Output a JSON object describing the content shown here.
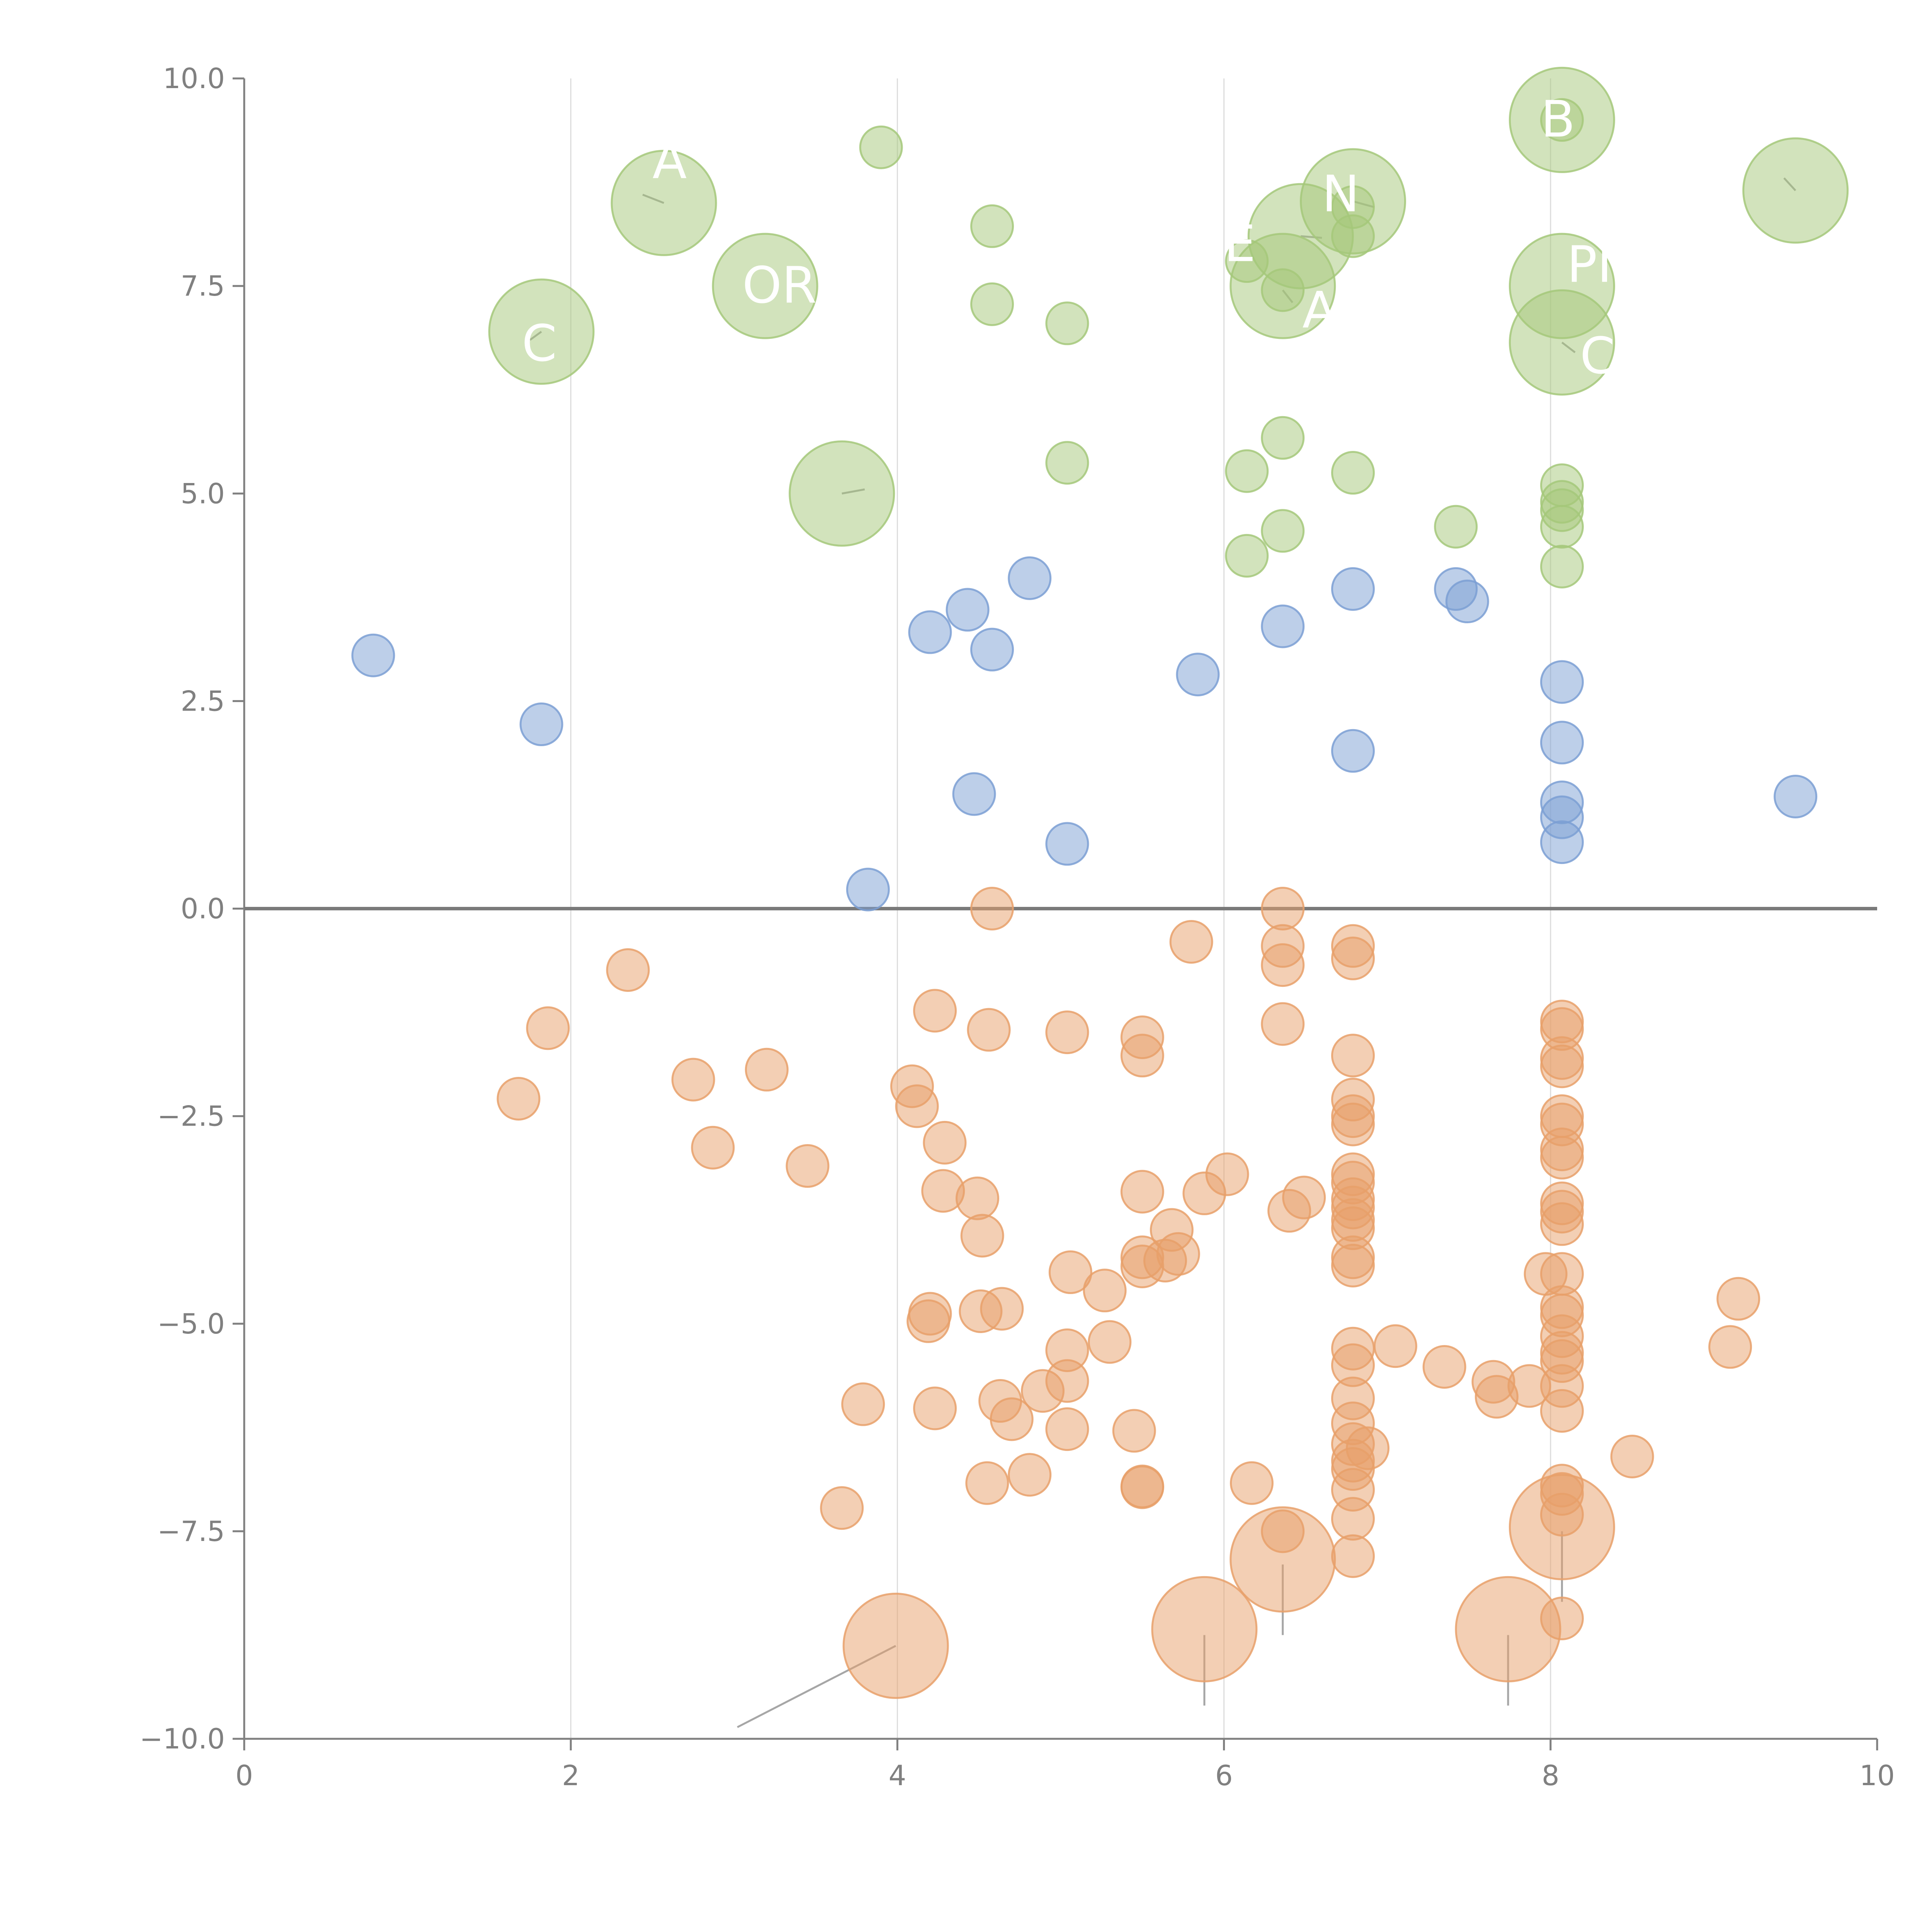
{
  "chart_data": {
    "type": "scatter",
    "title": "",
    "xlabel": "",
    "ylabel": "",
    "xlim": [
      0,
      10
    ],
    "ylim": [
      -10,
      10
    ],
    "xticks": [
      0,
      2,
      4,
      6,
      8,
      10
    ],
    "yticks": [
      -10,
      -7.5,
      -5,
      -2.5,
      0,
      2.5,
      5,
      7.5,
      10
    ],
    "xtick_labels": [
      "0",
      "2",
      "4",
      "6",
      "8",
      "10"
    ],
    "ytick_labels": [
      "−10.0",
      "−7.5",
      "−5.0",
      "−2.5",
      "0.0",
      "2.5",
      "5.0",
      "7.5",
      "10.0"
    ],
    "grid_x": true,
    "grid_y": false,
    "zero_line": true,
    "colors": {
      "green": "#a5c87a",
      "blue": "#7b9fd4",
      "orange": "#e8a06a",
      "axis": "#808080",
      "grid": "#dcdcdc",
      "annotation_line": "#a6a6a6"
    },
    "series": [
      {
        "name": "green",
        "color": "#a5c87a",
        "points": [
          [
            3.9,
            9.17,
            1
          ],
          [
            4.58,
            8.22,
            1
          ],
          [
            4.58,
            7.28,
            1
          ],
          [
            5.04,
            7.05,
            1
          ],
          [
            6.14,
            7.8,
            1
          ],
          [
            6.36,
            7.45,
            1
          ],
          [
            6.79,
            8.1,
            1
          ],
          [
            6.79,
            8.45,
            1
          ],
          [
            8.07,
            9.5,
            1
          ],
          [
            5.04,
            5.37,
            1
          ],
          [
            6.14,
            5.27,
            1
          ],
          [
            6.36,
            5.67,
            1
          ],
          [
            6.79,
            5.25,
            1
          ],
          [
            6.14,
            4.25,
            1
          ],
          [
            6.36,
            4.55,
            1
          ],
          [
            7.42,
            4.6,
            1
          ],
          [
            8.07,
            5.1,
            1
          ],
          [
            8.07,
            4.9,
            1
          ],
          [
            8.07,
            4.8,
            1
          ],
          [
            8.07,
            4.6,
            1
          ],
          [
            8.07,
            4.12,
            1
          ],
          [
            2.57,
            8.5,
            2.5
          ],
          [
            3.19,
            7.5,
            2.5
          ],
          [
            1.82,
            6.95,
            2.5
          ],
          [
            3.66,
            5.0,
            2.5
          ],
          [
            6.36,
            7.5,
            2.5
          ],
          [
            6.47,
            8.1,
            2.5
          ],
          [
            6.79,
            8.52,
            2.5
          ],
          [
            8.07,
            9.5,
            2.5
          ],
          [
            8.07,
            7.5,
            2.5
          ],
          [
            8.07,
            6.82,
            2.5
          ],
          [
            9.5,
            8.65,
            2.5
          ]
        ]
      },
      {
        "name": "blue",
        "color": "#7b9fd4",
        "points": [
          [
            0.79,
            3.05,
            1
          ],
          [
            1.82,
            2.22,
            1
          ],
          [
            3.82,
            0.23,
            1
          ],
          [
            4.2,
            3.33,
            1
          ],
          [
            4.43,
            3.6,
            1
          ],
          [
            4.47,
            1.38,
            1
          ],
          [
            4.58,
            3.12,
            1
          ],
          [
            4.81,
            3.98,
            1
          ],
          [
            5.04,
            0.78,
            1
          ],
          [
            5.84,
            2.82,
            1
          ],
          [
            6.36,
            3.4,
            1
          ],
          [
            6.79,
            3.85,
            1
          ],
          [
            6.79,
            1.9,
            1
          ],
          [
            7.42,
            3.85,
            1
          ],
          [
            7.49,
            3.7,
            1
          ],
          [
            8.07,
            2.73,
            1
          ],
          [
            8.07,
            2.0,
            1
          ],
          [
            8.07,
            1.28,
            1
          ],
          [
            8.07,
            1.1,
            1
          ],
          [
            8.07,
            0.8,
            1
          ],
          [
            9.5,
            1.35,
            1
          ]
        ]
      },
      {
        "name": "orange",
        "color": "#e8a06a",
        "points": [
          [
            2.35,
            -0.74,
            1
          ],
          [
            1.86,
            -1.44,
            1
          ],
          [
            1.68,
            -2.29,
            1
          ],
          [
            2.75,
            -2.06,
            1
          ],
          [
            2.87,
            -2.88,
            1
          ],
          [
            3.2,
            -1.94,
            1
          ],
          [
            3.45,
            -3.1,
            1
          ],
          [
            3.66,
            -7.22,
            1
          ],
          [
            3.79,
            -5.97,
            1
          ],
          [
            4.09,
            -2.14,
            1
          ],
          [
            4.12,
            -2.38,
            1
          ],
          [
            4.23,
            -1.23,
            1
          ],
          [
            4.29,
            -2.82,
            1
          ],
          [
            4.28,
            -3.4,
            1
          ],
          [
            4.2,
            -4.88,
            1
          ],
          [
            4.19,
            -4.97,
            1
          ],
          [
            4.23,
            -6.02,
            1
          ],
          [
            4.49,
            -3.49,
            1
          ],
          [
            4.52,
            -3.94,
            1
          ],
          [
            4.51,
            -4.85,
            1
          ],
          [
            4.55,
            -6.92,
            1
          ],
          [
            4.56,
            -1.46,
            1
          ],
          [
            4.58,
            0.0,
            1
          ],
          [
            4.64,
            -4.82,
            1
          ],
          [
            4.63,
            -5.93,
            1
          ],
          [
            4.7,
            -6.15,
            1
          ],
          [
            4.81,
            -6.82,
            1
          ],
          [
            4.89,
            -5.81,
            1
          ],
          [
            5.04,
            -1.49,
            1
          ],
          [
            5.06,
            -4.38,
            1
          ],
          [
            5.04,
            -5.32,
            1
          ],
          [
            5.04,
            -5.69,
            1
          ],
          [
            5.04,
            -6.27,
            1
          ],
          [
            5.27,
            -4.6,
            1
          ],
          [
            5.3,
            -5.22,
            1
          ],
          [
            5.45,
            -6.29,
            1
          ],
          [
            5.5,
            -1.55,
            1
          ],
          [
            5.5,
            -1.77,
            1
          ],
          [
            5.5,
            -3.41,
            1
          ],
          [
            5.5,
            -4.2,
            1
          ],
          [
            5.5,
            -4.31,
            1
          ],
          [
            5.5,
            -6.96,
            1
          ],
          [
            5.5,
            -6.97,
            1
          ],
          [
            5.64,
            -4.24,
            1
          ],
          [
            5.68,
            -3.87,
            1
          ],
          [
            5.72,
            -4.16,
            1
          ],
          [
            5.8,
            -0.4,
            1
          ],
          [
            5.88,
            -3.43,
            1
          ],
          [
            6.02,
            -3.2,
            1
          ],
          [
            6.17,
            -6.92,
            1
          ],
          [
            6.36,
            0.0,
            1
          ],
          [
            6.36,
            -0.45,
            1
          ],
          [
            6.36,
            -0.68,
            1
          ],
          [
            6.36,
            -1.39,
            1
          ],
          [
            6.4,
            -3.64,
            1
          ],
          [
            6.49,
            -3.48,
            1
          ],
          [
            6.36,
            -7.5,
            1
          ],
          [
            6.79,
            -0.45,
            1
          ],
          [
            6.79,
            -0.6,
            1
          ],
          [
            6.79,
            -1.77,
            1
          ],
          [
            6.79,
            -2.3,
            1
          ],
          [
            6.79,
            -2.5,
            1
          ],
          [
            6.79,
            -2.6,
            1
          ],
          [
            6.79,
            -3.2,
            1
          ],
          [
            6.79,
            -3.3,
            1
          ],
          [
            6.79,
            -3.5,
            1
          ],
          [
            6.79,
            -3.6,
            1
          ],
          [
            6.79,
            -3.75,
            1
          ],
          [
            6.79,
            -3.85,
            1
          ],
          [
            6.79,
            -4.2,
            1
          ],
          [
            6.79,
            -4.3,
            1
          ],
          [
            6.79,
            -5.3,
            1
          ],
          [
            6.79,
            -5.5,
            1
          ],
          [
            6.79,
            -5.9,
            1
          ],
          [
            6.79,
            -6.2,
            1
          ],
          [
            6.79,
            -6.45,
            1
          ],
          [
            6.79,
            -6.65,
            1
          ],
          [
            6.79,
            -6.75,
            1
          ],
          [
            6.79,
            -7.0,
            1
          ],
          [
            6.79,
            -7.35,
            1
          ],
          [
            6.79,
            -7.8,
            1
          ],
          [
            6.88,
            -6.5,
            1
          ],
          [
            7.05,
            -5.27,
            1
          ],
          [
            7.35,
            -5.52,
            1
          ],
          [
            7.65,
            -5.7,
            1
          ],
          [
            7.67,
            -5.88,
            1
          ],
          [
            7.87,
            -5.75,
            1
          ],
          [
            7.97,
            -4.4,
            1
          ],
          [
            8.07,
            -1.36,
            1
          ],
          [
            8.07,
            -1.45,
            1
          ],
          [
            8.07,
            -1.8,
            1
          ],
          [
            8.07,
            -1.9,
            1
          ],
          [
            8.07,
            -2.5,
            1
          ],
          [
            8.07,
            -2.6,
            1
          ],
          [
            8.07,
            -2.9,
            1
          ],
          [
            8.07,
            -3.0,
            1
          ],
          [
            8.07,
            -3.55,
            1
          ],
          [
            8.07,
            -3.65,
            1
          ],
          [
            8.07,
            -3.8,
            1
          ],
          [
            8.07,
            -4.4,
            1
          ],
          [
            8.07,
            -4.8,
            1
          ],
          [
            8.07,
            -4.9,
            1
          ],
          [
            8.07,
            -5.15,
            1
          ],
          [
            8.07,
            -5.35,
            1
          ],
          [
            8.07,
            -5.45,
            1
          ],
          [
            8.07,
            -5.75,
            1
          ],
          [
            8.07,
            -6.05,
            1
          ],
          [
            8.07,
            -6.95,
            1
          ],
          [
            8.07,
            -7.05,
            1
          ],
          [
            8.07,
            -7.3,
            1
          ],
          [
            8.07,
            -8.55,
            1
          ],
          [
            8.5,
            -6.6,
            1
          ],
          [
            9.1,
            -5.28,
            1
          ],
          [
            9.15,
            -4.7,
            1
          ],
          [
            3.99,
            -8.88,
            2.5
          ],
          [
            5.88,
            -8.68,
            2.5
          ],
          [
            6.36,
            -7.84,
            2.5
          ],
          [
            7.74,
            -8.68,
            2.5
          ],
          [
            8.07,
            -7.45,
            2.5
          ]
        ]
      }
    ],
    "annotation_lines": [
      [
        3.99,
        -8.88,
        3.02,
        -9.86
      ],
      [
        5.88,
        -8.75,
        5.88,
        -9.6
      ],
      [
        6.36,
        -7.9,
        6.36,
        -8.75
      ],
      [
        7.74,
        -8.75,
        7.74,
        -9.6
      ],
      [
        8.07,
        -7.5,
        8.07,
        -8.35
      ],
      [
        2.57,
        8.5,
        2.44,
        8.6
      ],
      [
        1.82,
        6.95,
        1.75,
        6.85
      ],
      [
        3.66,
        5.0,
        3.8,
        5.05
      ],
      [
        6.47,
        8.1,
        6.6,
        8.08
      ],
      [
        6.79,
        8.52,
        6.92,
        8.45
      ],
      [
        6.36,
        7.45,
        6.42,
        7.3
      ],
      [
        8.07,
        6.82,
        8.15,
        6.7
      ],
      [
        9.5,
        8.65,
        9.43,
        8.8
      ]
    ],
    "annotations": [
      {
        "x": 2.5,
        "y": 8.8,
        "text": "A"
      },
      {
        "x": 3.05,
        "y": 7.3,
        "text": "OR"
      },
      {
        "x": 1.7,
        "y": 6.6,
        "text": "C"
      },
      {
        "x": 6.0,
        "y": 7.8,
        "text": "E"
      },
      {
        "x": 6.6,
        "y": 8.4,
        "text": "N"
      },
      {
        "x": 6.48,
        "y": 7.0,
        "text": "A"
      },
      {
        "x": 7.94,
        "y": 9.3,
        "text": "B"
      },
      {
        "x": 8.1,
        "y": 7.55,
        "text": "PI"
      },
      {
        "x": 8.18,
        "y": 6.45,
        "text": "C"
      }
    ]
  }
}
